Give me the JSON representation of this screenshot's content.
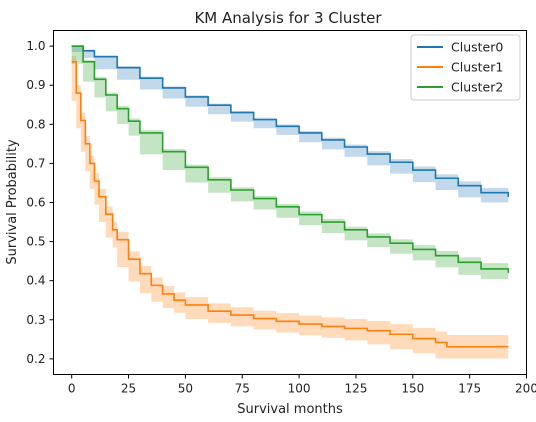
{
  "chart_data": {
    "type": "line",
    "title": "KM Analysis for 3 Cluster",
    "xlabel": "Survival months",
    "ylabel": "Survival Probability",
    "xlim": [
      -8,
      200
    ],
    "ylim": [
      0.16,
      1.04
    ],
    "xticks": [
      0,
      25,
      50,
      75,
      100,
      125,
      150,
      175,
      200
    ],
    "yticks": [
      0.2,
      0.3,
      0.4,
      0.5,
      0.6,
      0.7,
      0.8,
      0.9,
      1.0
    ],
    "grid": false,
    "legend_position": "top-right",
    "series": [
      {
        "name": "Cluster0",
        "color": "#1f77b4",
        "x": [
          0,
          5,
          10,
          20,
          30,
          40,
          50,
          60,
          70,
          80,
          90,
          100,
          110,
          120,
          130,
          140,
          150,
          160,
          170,
          180,
          192
        ],
        "y": [
          1.0,
          0.988,
          0.973,
          0.945,
          0.918,
          0.893,
          0.87,
          0.849,
          0.83,
          0.812,
          0.795,
          0.778,
          0.76,
          0.742,
          0.724,
          0.703,
          0.683,
          0.662,
          0.643,
          0.625,
          0.614
        ],
        "ci_lower": [
          1.0,
          0.985,
          0.97,
          0.941,
          0.914,
          0.889,
          0.866,
          0.845,
          0.826,
          0.807,
          0.79,
          0.773,
          0.754,
          0.736,
          0.717,
          0.695,
          0.674,
          0.652,
          0.632,
          0.613,
          0.6
        ],
        "ci_upper": [
          1.0,
          0.991,
          0.976,
          0.949,
          0.922,
          0.897,
          0.874,
          0.853,
          0.834,
          0.817,
          0.8,
          0.783,
          0.766,
          0.748,
          0.731,
          0.711,
          0.692,
          0.672,
          0.654,
          0.637,
          0.628
        ]
      },
      {
        "name": "Cluster1",
        "color": "#ff7f0e",
        "x": [
          0,
          2,
          4,
          6,
          8,
          10,
          12,
          15,
          18,
          20,
          25,
          30,
          35,
          40,
          45,
          50,
          60,
          70,
          80,
          90,
          100,
          110,
          120,
          130,
          140,
          150,
          160,
          165,
          170,
          180,
          192
        ],
        "y": [
          0.96,
          0.88,
          0.81,
          0.75,
          0.7,
          0.655,
          0.615,
          0.57,
          0.53,
          0.505,
          0.455,
          0.418,
          0.388,
          0.366,
          0.35,
          0.338,
          0.322,
          0.312,
          0.303,
          0.296,
          0.289,
          0.283,
          0.278,
          0.272,
          0.263,
          0.252,
          0.242,
          0.231,
          0.231,
          0.231,
          0.231
        ],
        "ci_lower": [
          0.94,
          0.86,
          0.79,
          0.73,
          0.68,
          0.635,
          0.595,
          0.55,
          0.51,
          0.485,
          0.435,
          0.398,
          0.368,
          0.346,
          0.33,
          0.318,
          0.302,
          0.292,
          0.283,
          0.275,
          0.267,
          0.26,
          0.254,
          0.247,
          0.237,
          0.225,
          0.214,
          0.201,
          0.201,
          0.201,
          0.201
        ],
        "ci_upper": [
          0.975,
          0.9,
          0.83,
          0.77,
          0.72,
          0.675,
          0.635,
          0.59,
          0.55,
          0.525,
          0.475,
          0.438,
          0.408,
          0.386,
          0.37,
          0.358,
          0.342,
          0.332,
          0.323,
          0.317,
          0.311,
          0.306,
          0.302,
          0.297,
          0.289,
          0.279,
          0.27,
          0.261,
          0.261,
          0.261,
          0.261
        ]
      },
      {
        "name": "Cluster2",
        "color": "#2ca02c",
        "x": [
          0,
          5,
          10,
          15,
          20,
          25,
          30,
          40,
          50,
          60,
          70,
          80,
          90,
          100,
          110,
          120,
          130,
          140,
          150,
          160,
          170,
          180,
          192
        ],
        "y": [
          1.0,
          0.96,
          0.915,
          0.875,
          0.84,
          0.808,
          0.778,
          0.73,
          0.69,
          0.658,
          0.632,
          0.61,
          0.589,
          0.569,
          0.55,
          0.53,
          0.512,
          0.496,
          0.48,
          0.464,
          0.447,
          0.43,
          0.42
        ],
        "ci_lower": [
          1.0,
          0.955,
          0.909,
          0.869,
          0.833,
          0.801,
          0.771,
          0.723,
          0.683,
          0.651,
          0.625,
          0.603,
          0.582,
          0.561,
          0.542,
          0.522,
          0.503,
          0.486,
          0.469,
          0.452,
          0.434,
          0.415,
          0.404
        ],
        "ci_upper": [
          1.0,
          0.965,
          0.921,
          0.881,
          0.847,
          0.815,
          0.785,
          0.737,
          0.697,
          0.665,
          0.639,
          0.617,
          0.596,
          0.577,
          0.558,
          0.538,
          0.521,
          0.506,
          0.491,
          0.476,
          0.46,
          0.445,
          0.436
        ]
      }
    ]
  }
}
